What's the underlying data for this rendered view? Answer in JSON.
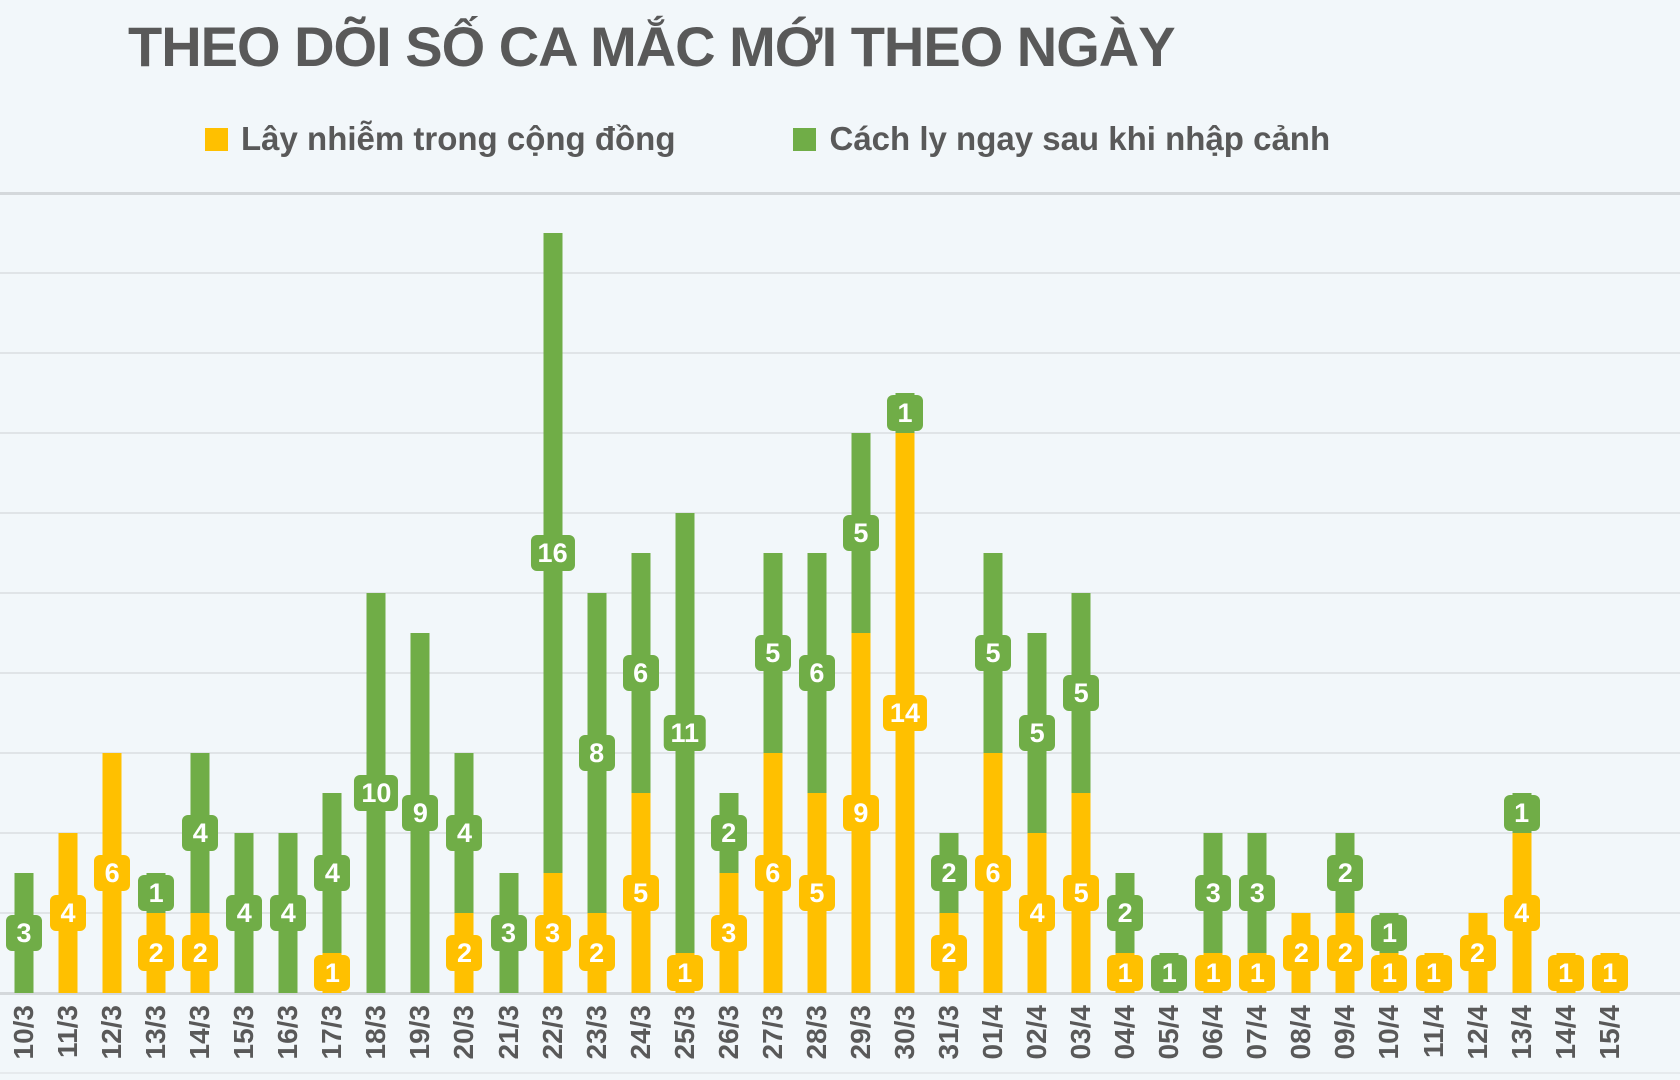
{
  "title": "THEO DÕI SỐ CA MẮC MỚI THEO NGÀY",
  "legend": {
    "items": [
      {
        "id": "community",
        "label": "Lây nhiễm trong cộng đồng",
        "color": "#FFC000"
      },
      {
        "id": "quarantine",
        "label": "Cách ly ngay sau khi nhập cảnh",
        "color": "#70AD47"
      }
    ]
  },
  "colors": {
    "background": "#F2F7FA",
    "text": "#595959",
    "grid": "#E0E4E7",
    "grid_strong": "#D4D8DB",
    "community": "#FFC000",
    "quarantine": "#70AD47",
    "label_text": "#FFFFFF"
  },
  "chart_data": {
    "type": "bar",
    "stacked": true,
    "title": "THEO DÕI SỐ CA MẮC MỚI THEO NGÀY",
    "xlabel": "",
    "ylabel": "",
    "ylim": [
      0,
      20
    ],
    "gridline_step": 2,
    "grid": true,
    "data_labels": true,
    "legend_position": "top",
    "categories": [
      "10/3",
      "11/3",
      "12/3",
      "13/3",
      "14/3",
      "15/3",
      "16/3",
      "17/3",
      "18/3",
      "19/3",
      "20/3",
      "21/3",
      "22/3",
      "23/3",
      "24/3",
      "25/3",
      "26/3",
      "27/3",
      "28/3",
      "29/3",
      "30/3",
      "31/3",
      "01/4",
      "02/4",
      "03/4",
      "04/4",
      "05/4",
      "06/4",
      "07/4",
      "08/4",
      "09/4",
      "10/4",
      "11/4",
      "12/4",
      "13/4",
      "14/4",
      "15/4"
    ],
    "series": [
      {
        "name": "Lây nhiễm trong cộng đồng",
        "color": "#FFC000",
        "values": [
          0,
          4,
          6,
          2,
          2,
          0,
          0,
          1,
          0,
          0,
          2,
          0,
          3,
          2,
          5,
          1,
          3,
          6,
          5,
          9,
          14,
          2,
          6,
          4,
          5,
          1,
          0,
          1,
          1,
          2,
          2,
          1,
          1,
          2,
          4,
          1,
          1
        ]
      },
      {
        "name": "Cách ly ngay sau khi nhập cảnh",
        "color": "#70AD47",
        "values": [
          3,
          0,
          0,
          1,
          4,
          4,
          4,
          4,
          10,
          9,
          4,
          3,
          16,
          8,
          6,
          11,
          2,
          5,
          6,
          5,
          1,
          2,
          5,
          5,
          5,
          2,
          1,
          3,
          3,
          0,
          2,
          1,
          0,
          0,
          1,
          0,
          0
        ]
      }
    ]
  }
}
